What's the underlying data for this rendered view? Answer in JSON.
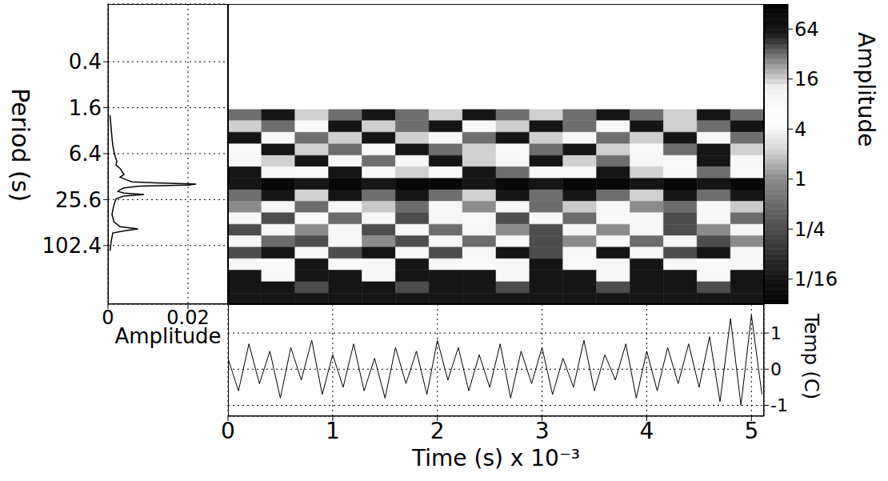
{
  "chart_data": [
    {
      "type": "line",
      "xlabel": "Amplitude",
      "ylabel": "Period (s)",
      "log": "y",
      "grid": true,
      "color": "#000000",
      "x": [
        0.0005,
        0.0008,
        0.001,
        0.0012,
        0.0015,
        0.0018,
        0.0022,
        0.002,
        0.003,
        0.0035,
        0.004,
        0.003,
        0.0045,
        0.006,
        0.012,
        0.022,
        0.02,
        0.008,
        0.004,
        0.003,
        0.0025,
        0.004,
        0.009,
        0.004,
        0.002,
        0.0015,
        0.0012,
        0.001,
        0.0015,
        0.003,
        0.0075,
        0.004,
        0.0012,
        0.0008,
        0.0005
      ],
      "y": [
        2,
        3,
        4,
        5,
        6,
        7,
        8,
        9,
        10,
        11,
        12,
        13,
        14,
        15,
        15.5,
        16,
        16.5,
        17,
        18,
        19,
        20,
        21,
        22,
        23,
        25,
        30,
        35,
        40,
        50,
        58,
        62,
        66,
        70,
        90,
        120
      ],
      "xlim": [
        0,
        0.03
      ],
      "xticks": [
        0,
        0.02
      ],
      "ylim": [
        0.07,
        600
      ],
      "yticks": [
        0.4,
        1.6,
        6.4,
        25.6,
        102.4
      ]
    },
    {
      "type": "heatmap",
      "log": "y",
      "tick_labels": false,
      "x": [
        0.16,
        0.48,
        0.8,
        1.12,
        1.44,
        1.76,
        2.08,
        2.4,
        2.72,
        3.04,
        3.36,
        3.68,
        4.0,
        4.32,
        4.64,
        4.96
      ],
      "y": [
        2,
        2.8,
        4,
        5.7,
        8,
        11.3,
        16,
        22.6,
        32,
        45.3,
        64,
        90.5,
        128,
        181,
        256,
        362,
        512
      ],
      "xlim": [
        0,
        5.12
      ],
      "ylim": [
        0.07,
        600
      ],
      "cells": [
        [
          32,
          64,
          16,
          32,
          64,
          32,
          16,
          64,
          32,
          16,
          32,
          64,
          32,
          16,
          64,
          32
        ],
        [
          16,
          32,
          8,
          64,
          16,
          32,
          64,
          8,
          16,
          64,
          32,
          8,
          64,
          16,
          32,
          64
        ],
        [
          64,
          8,
          32,
          16,
          64,
          16,
          8,
          32,
          64,
          16,
          8,
          32,
          16,
          64,
          8,
          32
        ],
        [
          8,
          64,
          16,
          32,
          8,
          64,
          32,
          16,
          8,
          32,
          64,
          16,
          8,
          32,
          64,
          16
        ],
        [
          4,
          16,
          64,
          8,
          32,
          4,
          64,
          16,
          4,
          64,
          16,
          32,
          4,
          8,
          64,
          4
        ],
        [
          64,
          4,
          8,
          64,
          4,
          16,
          8,
          64,
          32,
          4,
          8,
          64,
          16,
          4,
          32,
          8
        ],
        [
          64,
          100,
          64,
          100,
          64,
          100,
          100,
          64,
          100,
          64,
          100,
          100,
          64,
          100,
          64,
          100
        ],
        [
          32,
          64,
          16,
          64,
          32,
          64,
          32,
          16,
          64,
          32,
          64,
          32,
          16,
          64,
          32,
          64
        ],
        [
          1,
          4,
          0.5,
          4,
          2,
          0.5,
          4,
          1,
          4,
          0.5,
          2,
          4,
          1,
          0.5,
          4,
          2
        ],
        [
          4,
          0.25,
          8,
          0.5,
          4,
          0.25,
          4,
          8,
          0.25,
          4,
          0.5,
          8,
          4,
          0.25,
          4,
          0.5
        ],
        [
          0.25,
          4,
          1,
          4,
          0.25,
          4,
          0.5,
          4,
          1,
          0.25,
          4,
          1,
          4,
          0.25,
          1,
          4
        ],
        [
          4,
          0.5,
          0.25,
          4,
          1,
          0.25,
          4,
          0.5,
          4,
          0.25,
          1,
          4,
          0.5,
          4,
          0.25,
          1
        ],
        [
          0.25,
          0.0625,
          4,
          0.25,
          0.0625,
          4,
          0.25,
          4,
          0.0625,
          0.25,
          4,
          0.0625,
          4,
          0.25,
          0.0625,
          4
        ],
        [
          4,
          8,
          0.0625,
          8,
          4,
          0.0625,
          4,
          8,
          4,
          0.0625,
          8,
          4,
          0.0625,
          4,
          8,
          4
        ],
        [
          0.0625,
          4,
          0.0625,
          0.0625,
          4,
          0.0625,
          0.0625,
          0.0625,
          4,
          0.0625,
          0.0625,
          4,
          0.0625,
          0.0625,
          4,
          0.0625
        ],
        [
          0.0625,
          0.0625,
          0.25,
          0.0625,
          0.0625,
          0.25,
          0.0625,
          0.0625,
          0.25,
          0.0625,
          0.0625,
          0.25,
          0.0625,
          0.0625,
          0.25,
          0.0625
        ],
        [
          0.0625,
          0.0625,
          0.0625,
          0.0625,
          0.0625,
          0.0625,
          0.0625,
          0.0625,
          0.0625,
          0.0625,
          0.0625,
          0.0625,
          0.0625,
          0.0625,
          0.0625,
          0.0625
        ]
      ],
      "colorbar": {
        "label": "Amplitude",
        "log": true,
        "range": [
          0.03125,
          128
        ],
        "ticks": [
          64,
          16,
          4,
          1,
          {
            "value": 0.25,
            "label": "1/4"
          },
          {
            "value": 0.0625,
            "label": "1/16"
          }
        ]
      }
    },
    {
      "type": "line",
      "xlabel": "Time (s) x 10⁻³",
      "ylabel": "Temp (C)",
      "grid": true,
      "color": "#000000",
      "x": [
        0,
        0.1,
        0.2,
        0.3,
        0.4,
        0.5,
        0.6,
        0.7,
        0.8,
        0.9,
        1.0,
        1.1,
        1.2,
        1.3,
        1.4,
        1.5,
        1.6,
        1.7,
        1.8,
        1.9,
        2.0,
        2.1,
        2.2,
        2.3,
        2.4,
        2.5,
        2.6,
        2.7,
        2.8,
        2.9,
        3.0,
        3.1,
        3.2,
        3.3,
        3.4,
        3.5,
        3.6,
        3.7,
        3.8,
        3.9,
        4.0,
        4.1,
        4.2,
        4.3,
        4.4,
        4.5,
        4.6,
        4.7,
        4.8,
        4.9,
        5.0,
        5.1
      ],
      "values": [
        0.3,
        -0.6,
        0.7,
        -0.4,
        0.5,
        -0.8,
        0.6,
        -0.3,
        0.8,
        -0.7,
        0.4,
        -0.5,
        0.7,
        -0.6,
        0.3,
        -0.8,
        0.6,
        -0.4,
        0.5,
        -0.7,
        0.8,
        -0.3,
        0.6,
        -0.6,
        0.4,
        -0.5,
        0.7,
        -0.8,
        0.5,
        -0.4,
        0.6,
        -0.7,
        0.3,
        -0.5,
        0.8,
        -0.6,
        0.4,
        -0.3,
        0.7,
        -0.8,
        0.5,
        -0.6,
        0.6,
        -0.4,
        0.7,
        -0.5,
        0.9,
        -0.9,
        1.4,
        -1.0,
        1.5,
        -0.7
      ],
      "xlim": [
        0,
        5.12
      ],
      "xticks": [
        0,
        1,
        2,
        3,
        4,
        5
      ],
      "ylim": [
        -1.3,
        1.8
      ],
      "yticks": [
        -1,
        0,
        1
      ]
    }
  ]
}
